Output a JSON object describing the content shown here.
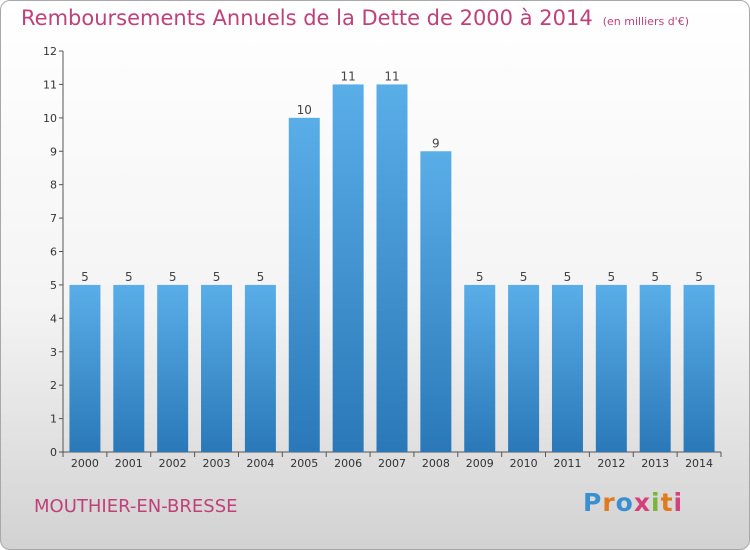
{
  "title": "Remboursements Annuels de la Dette de 2000 à 2014",
  "subtitle": "(en milliers d'€)",
  "commune": "MOUTHIER-EN-BRESSE",
  "logo": {
    "text": "Proxiti",
    "colors": [
      "#3a8fd0",
      "#e07a1f",
      "#3a8fd0",
      "#d53f7a",
      "#7ab53a",
      "#e07a1f",
      "#d53f7a"
    ]
  },
  "colors": {
    "bar_top": "#5aaee8",
    "bar_bottom": "#2a78b8",
    "text_accent": "#c0407a",
    "axis": "#555555"
  },
  "chart_data": {
    "type": "bar",
    "title": "Remboursements Annuels de la Dette de 2000 à 2014",
    "subtitle": "(en milliers d'€)",
    "categories": [
      "2000",
      "2001",
      "2002",
      "2003",
      "2004",
      "2005",
      "2006",
      "2007",
      "2008",
      "2009",
      "2010",
      "2011",
      "2012",
      "2013",
      "2014"
    ],
    "values": [
      5,
      5,
      5,
      5,
      5,
      10,
      11,
      11,
      9,
      5,
      5,
      5,
      5,
      5,
      5
    ],
    "ylim": [
      0,
      12
    ],
    "yticks": [
      0,
      1,
      2,
      3,
      4,
      5,
      6,
      7,
      8,
      9,
      10,
      11,
      12
    ],
    "grid": false,
    "legend": "none"
  }
}
